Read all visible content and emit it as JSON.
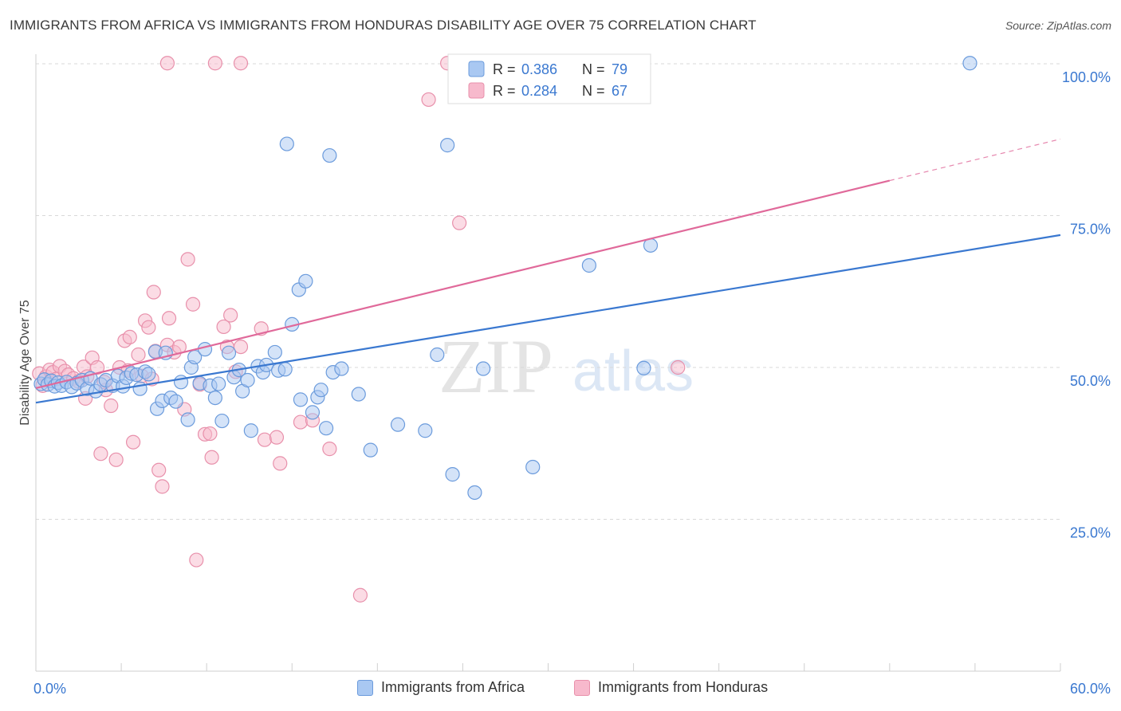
{
  "title": "IMMIGRANTS FROM AFRICA VS IMMIGRANTS FROM HONDURAS DISABILITY AGE OVER 75 CORRELATION CHART",
  "source": "Source: ZipAtlas.com",
  "watermark": {
    "zip": "ZIP",
    "atlas": "atlas"
  },
  "colors": {
    "africa_fill": "#a9c8f2",
    "africa_stroke": "#6b9bdc",
    "africa_line": "#3a78d0",
    "honduras_fill": "#f7b9cc",
    "honduras_stroke": "#e890ab",
    "honduras_line": "#e0699a",
    "axis_label": "#3a78d0",
    "grid": "#d9d9d9"
  },
  "legend": {
    "africa": {
      "r_label": "R =",
      "r_value": "0.386",
      "n_label": "N =",
      "n_value": "79"
    },
    "honduras": {
      "r_label": "R =",
      "r_value": "0.284",
      "n_label": "N =",
      "n_value": "67"
    }
  },
  "bottom_legend": {
    "africa": "Immigrants from Africa",
    "honduras": "Immigrants from Honduras"
  },
  "chart_data": {
    "type": "scatter",
    "title": "IMMIGRANTS FROM AFRICA VS IMMIGRANTS FROM HONDURAS DISABILITY AGE OVER 75 CORRELATION CHART",
    "xlabel": "",
    "ylabel": "Disability Age Over 75",
    "xlim": [
      0,
      60
    ],
    "ylim": [
      0,
      102
    ],
    "x_tick_labels": [
      "0.0%",
      "60.0%"
    ],
    "y_ticks": [
      25,
      50,
      75,
      100
    ],
    "y_tick_labels": [
      "25.0%",
      "50.0%",
      "75.0%",
      "100.0%"
    ],
    "grid": true,
    "series": [
      {
        "name": "Immigrants from Africa",
        "r": 0.386,
        "n": 79,
        "trend": {
          "x": [
            0,
            60
          ],
          "y": [
            44.2,
            71.8
          ],
          "dashed_from": null
        },
        "points": [
          [
            0.3,
            47.3
          ],
          [
            0.5,
            48.0
          ],
          [
            0.7,
            47.2
          ],
          [
            0.9,
            47.8
          ],
          [
            1.1,
            46.9
          ],
          [
            1.3,
            47.5
          ],
          [
            1.5,
            47.0
          ],
          [
            1.8,
            47.6
          ],
          [
            2.1,
            46.8
          ],
          [
            2.4,
            47.4
          ],
          [
            2.7,
            47.9
          ],
          [
            3.0,
            46.5
          ],
          [
            3.2,
            48.2
          ],
          [
            3.5,
            46.1
          ],
          [
            3.8,
            47.2
          ],
          [
            4.1,
            47.9
          ],
          [
            4.5,
            47.0
          ],
          [
            4.8,
            48.6
          ],
          [
            5.1,
            46.9
          ],
          [
            5.3,
            48.3
          ],
          [
            5.6,
            49.0
          ],
          [
            5.9,
            48.8
          ],
          [
            6.1,
            46.5
          ],
          [
            6.4,
            49.3
          ],
          [
            6.6,
            48.9
          ],
          [
            7.0,
            52.6
          ],
          [
            7.1,
            43.2
          ],
          [
            7.4,
            44.5
          ],
          [
            7.6,
            52.4
          ],
          [
            7.9,
            45.0
          ],
          [
            8.2,
            44.4
          ],
          [
            8.5,
            47.6
          ],
          [
            8.9,
            41.4
          ],
          [
            9.1,
            50.0
          ],
          [
            9.3,
            51.7
          ],
          [
            9.6,
            47.4
          ],
          [
            9.9,
            53.0
          ],
          [
            10.2,
            47.0
          ],
          [
            10.5,
            45.0
          ],
          [
            10.7,
            47.3
          ],
          [
            10.9,
            41.2
          ],
          [
            11.3,
            52.4
          ],
          [
            11.6,
            48.4
          ],
          [
            11.9,
            49.6
          ],
          [
            12.1,
            46.1
          ],
          [
            12.4,
            47.9
          ],
          [
            12.6,
            39.6
          ],
          [
            13.0,
            50.2
          ],
          [
            13.3,
            49.2
          ],
          [
            13.5,
            50.4
          ],
          [
            14.0,
            52.5
          ],
          [
            14.2,
            49.5
          ],
          [
            14.6,
            49.7
          ],
          [
            14.7,
            86.8
          ],
          [
            15.0,
            57.1
          ],
          [
            15.4,
            62.8
          ],
          [
            15.5,
            44.7
          ],
          [
            15.8,
            64.2
          ],
          [
            16.2,
            42.6
          ],
          [
            16.5,
            45.1
          ],
          [
            16.7,
            46.3
          ],
          [
            17.0,
            40.0
          ],
          [
            17.2,
            84.9
          ],
          [
            17.4,
            49.2
          ],
          [
            17.9,
            49.8
          ],
          [
            18.9,
            45.6
          ],
          [
            19.6,
            36.4
          ],
          [
            21.2,
            40.6
          ],
          [
            22.8,
            39.6
          ],
          [
            23.5,
            52.1
          ],
          [
            24.1,
            86.6
          ],
          [
            24.4,
            32.4
          ],
          [
            25.7,
            29.4
          ],
          [
            26.2,
            49.8
          ],
          [
            29.1,
            33.6
          ],
          [
            32.4,
            66.8
          ],
          [
            35.6,
            49.9
          ],
          [
            36.0,
            70.1
          ],
          [
            54.7,
            100.1
          ]
        ]
      },
      {
        "name": "Immigrants from Honduras",
        "r": 0.284,
        "n": 67,
        "trend": {
          "x": [
            0,
            60
          ],
          "y": [
            46.6,
            87.6
          ],
          "dashed_from": 50
        },
        "points": [
          [
            0.2,
            49.0
          ],
          [
            0.4,
            47.0
          ],
          [
            0.6,
            48.5
          ],
          [
            0.8,
            49.6
          ],
          [
            1.0,
            49.2
          ],
          [
            1.2,
            48.1
          ],
          [
            1.4,
            50.2
          ],
          [
            1.7,
            49.4
          ],
          [
            1.9,
            48.8
          ],
          [
            2.2,
            48.2
          ],
          [
            2.5,
            47.7
          ],
          [
            2.8,
            50.1
          ],
          [
            3.0,
            48.5
          ],
          [
            3.3,
            51.6
          ],
          [
            3.6,
            50.0
          ],
          [
            3.8,
            35.8
          ],
          [
            4.1,
            46.3
          ],
          [
            4.4,
            43.7
          ],
          [
            4.7,
            34.8
          ],
          [
            4.9,
            50.0
          ],
          [
            5.2,
            54.4
          ],
          [
            5.5,
            55.0
          ],
          [
            5.7,
            37.7
          ],
          [
            6.0,
            52.1
          ],
          [
            6.2,
            48.6
          ],
          [
            6.4,
            57.7
          ],
          [
            6.6,
            56.6
          ],
          [
            6.9,
            62.4
          ],
          [
            7.0,
            52.7
          ],
          [
            7.2,
            33.1
          ],
          [
            7.4,
            30.4
          ],
          [
            7.7,
            53.7
          ],
          [
            7.8,
            58.1
          ],
          [
            8.1,
            52.5
          ],
          [
            8.4,
            53.4
          ],
          [
            8.7,
            43.1
          ],
          [
            8.9,
            67.8
          ],
          [
            9.2,
            60.4
          ],
          [
            9.4,
            18.3
          ],
          [
            9.9,
            39.0
          ],
          [
            10.2,
            39.1
          ],
          [
            10.3,
            35.2
          ],
          [
            11.0,
            56.7
          ],
          [
            11.2,
            53.4
          ],
          [
            11.4,
            58.6
          ],
          [
            11.7,
            49.3
          ],
          [
            12.0,
            53.4
          ],
          [
            13.2,
            56.4
          ],
          [
            13.4,
            38.1
          ],
          [
            14.1,
            38.5
          ],
          [
            14.3,
            34.2
          ],
          [
            15.5,
            41.0
          ],
          [
            16.2,
            41.3
          ],
          [
            17.2,
            36.6
          ],
          [
            19.0,
            12.5
          ],
          [
            23.0,
            94.1
          ],
          [
            24.8,
            73.8
          ],
          [
            37.6,
            50.0
          ],
          [
            7.7,
            100.1
          ],
          [
            10.5,
            100.1
          ],
          [
            12.0,
            100.1
          ],
          [
            24.1,
            100.1
          ],
          [
            2.9,
            44.9
          ],
          [
            4.0,
            47.6
          ],
          [
            5.4,
            49.5
          ],
          [
            6.8,
            48.1
          ],
          [
            9.6,
            47.2
          ]
        ]
      }
    ]
  }
}
